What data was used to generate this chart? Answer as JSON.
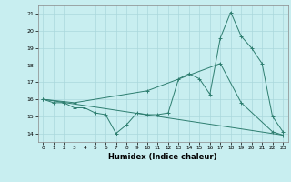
{
  "line1_x": [
    0,
    1,
    2,
    3,
    4,
    5,
    6,
    7,
    8,
    9,
    10,
    11,
    12,
    13,
    14,
    15,
    16,
    17,
    18,
    19,
    20,
    21,
    22,
    23
  ],
  "line1_y": [
    16.0,
    15.8,
    15.8,
    15.5,
    15.5,
    15.2,
    15.1,
    14.0,
    14.5,
    15.2,
    15.1,
    15.1,
    15.2,
    17.2,
    17.5,
    17.2,
    16.3,
    19.6,
    21.1,
    19.7,
    19.0,
    18.1,
    15.0,
    14.1
  ],
  "line2_x": [
    0,
    3,
    10,
    17,
    19,
    22,
    23
  ],
  "line2_y": [
    16.0,
    15.8,
    16.5,
    18.1,
    15.8,
    14.1,
    13.9
  ],
  "line3_x": [
    0,
    23
  ],
  "line3_y": [
    16.0,
    13.9
  ],
  "color": "#2d7d6f",
  "bg_color": "#c8eef0",
  "grid_color": "#aad8dc",
  "xlim": [
    -0.5,
    23.5
  ],
  "ylim": [
    13.5,
    21.5
  ],
  "yticks": [
    14,
    15,
    16,
    17,
    18,
    19,
    20,
    21
  ],
  "xticks": [
    0,
    1,
    2,
    3,
    4,
    5,
    6,
    7,
    8,
    9,
    10,
    11,
    12,
    13,
    14,
    15,
    16,
    17,
    18,
    19,
    20,
    21,
    22,
    23
  ],
  "xlabel": "Humidex (Indice chaleur)",
  "marker": "+"
}
